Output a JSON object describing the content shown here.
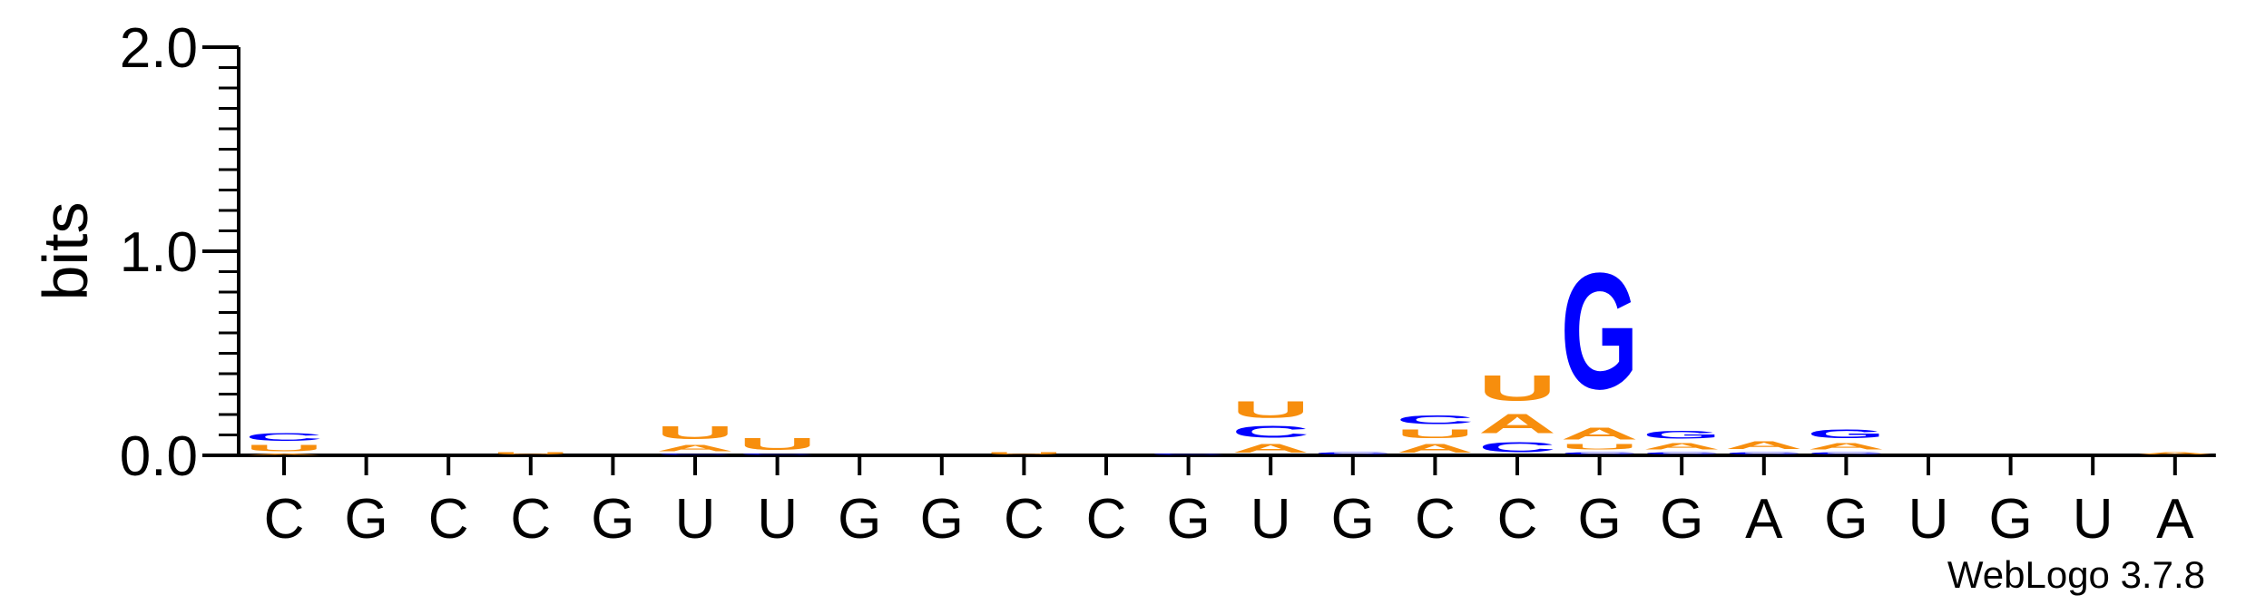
{
  "chart_data": {
    "type": "sequence-logo",
    "ylabel": "bits",
    "ylim": [
      0,
      2.0
    ],
    "yticks": [
      "0.0",
      "1.0",
      "2.0"
    ],
    "y_minor_step": 0.1,
    "credit": "WebLogo 3.7.8",
    "colors": {
      "A": "#f78e0d",
      "U": "#f78e0d",
      "C": "#0000ff",
      "G": "#0000ff"
    },
    "positions": [
      {
        "label": "C",
        "stack": [
          {
            "base": "A",
            "bits": 0.01
          },
          {
            "base": "U",
            "bits": 0.05
          },
          {
            "base": "C",
            "bits": 0.06
          }
        ]
      },
      {
        "label": "G",
        "stack": []
      },
      {
        "label": "C",
        "stack": []
      },
      {
        "label": "C",
        "stack": [
          {
            "base": "U",
            "bits": 0.02
          }
        ]
      },
      {
        "label": "G",
        "stack": []
      },
      {
        "label": "U",
        "stack": [
          {
            "base": "C",
            "bits": 0.01
          },
          {
            "base": "A",
            "bits": 0.05
          },
          {
            "base": "U",
            "bits": 0.1
          }
        ]
      },
      {
        "label": "U",
        "stack": [
          {
            "base": "C",
            "bits": 0.01
          },
          {
            "base": "U",
            "bits": 0.09
          }
        ]
      },
      {
        "label": "G",
        "stack": []
      },
      {
        "label": "G",
        "stack": []
      },
      {
        "label": "C",
        "stack": [
          {
            "base": "U",
            "bits": 0.02
          }
        ]
      },
      {
        "label": "C",
        "stack": []
      },
      {
        "label": "G",
        "stack": [
          {
            "base": "C",
            "bits": 0.01
          }
        ]
      },
      {
        "label": "U",
        "stack": [
          {
            "base": "A",
            "bits": 0.07
          },
          {
            "base": "C",
            "bits": 0.09
          },
          {
            "base": "U",
            "bits": 0.13
          }
        ]
      },
      {
        "label": "G",
        "stack": [
          {
            "base": "C",
            "bits": 0.02
          }
        ]
      },
      {
        "label": "C",
        "stack": [
          {
            "base": "A",
            "bits": 0.07
          },
          {
            "base": "U",
            "bits": 0.07
          },
          {
            "base": "C",
            "bits": 0.07
          }
        ]
      },
      {
        "label": "C",
        "stack": [
          {
            "base": "C",
            "bits": 0.08
          },
          {
            "base": "A",
            "bits": 0.15
          },
          {
            "base": "U",
            "bits": 0.2
          }
        ]
      },
      {
        "label": "G",
        "stack": [
          {
            "base": "C",
            "bits": 0.02
          },
          {
            "base": "U",
            "bits": 0.04
          },
          {
            "base": "A",
            "bits": 0.09
          },
          {
            "base": "G",
            "bits": 0.91
          }
        ]
      },
      {
        "label": "G",
        "stack": [
          {
            "base": "C",
            "bits": 0.02
          },
          {
            "base": "A",
            "bits": 0.05
          },
          {
            "base": "G",
            "bits": 0.06
          }
        ]
      },
      {
        "label": "A",
        "stack": [
          {
            "base": "C",
            "bits": 0.02
          },
          {
            "base": "A",
            "bits": 0.06
          }
        ]
      },
      {
        "label": "G",
        "stack": [
          {
            "base": "C",
            "bits": 0.02
          },
          {
            "base": "A",
            "bits": 0.05
          },
          {
            "base": "G",
            "bits": 0.07
          }
        ]
      },
      {
        "label": "U",
        "stack": []
      },
      {
        "label": "G",
        "stack": []
      },
      {
        "label": "U",
        "stack": []
      },
      {
        "label": "A",
        "stack": [
          {
            "base": "A",
            "bits": 0.02
          }
        ]
      }
    ]
  }
}
